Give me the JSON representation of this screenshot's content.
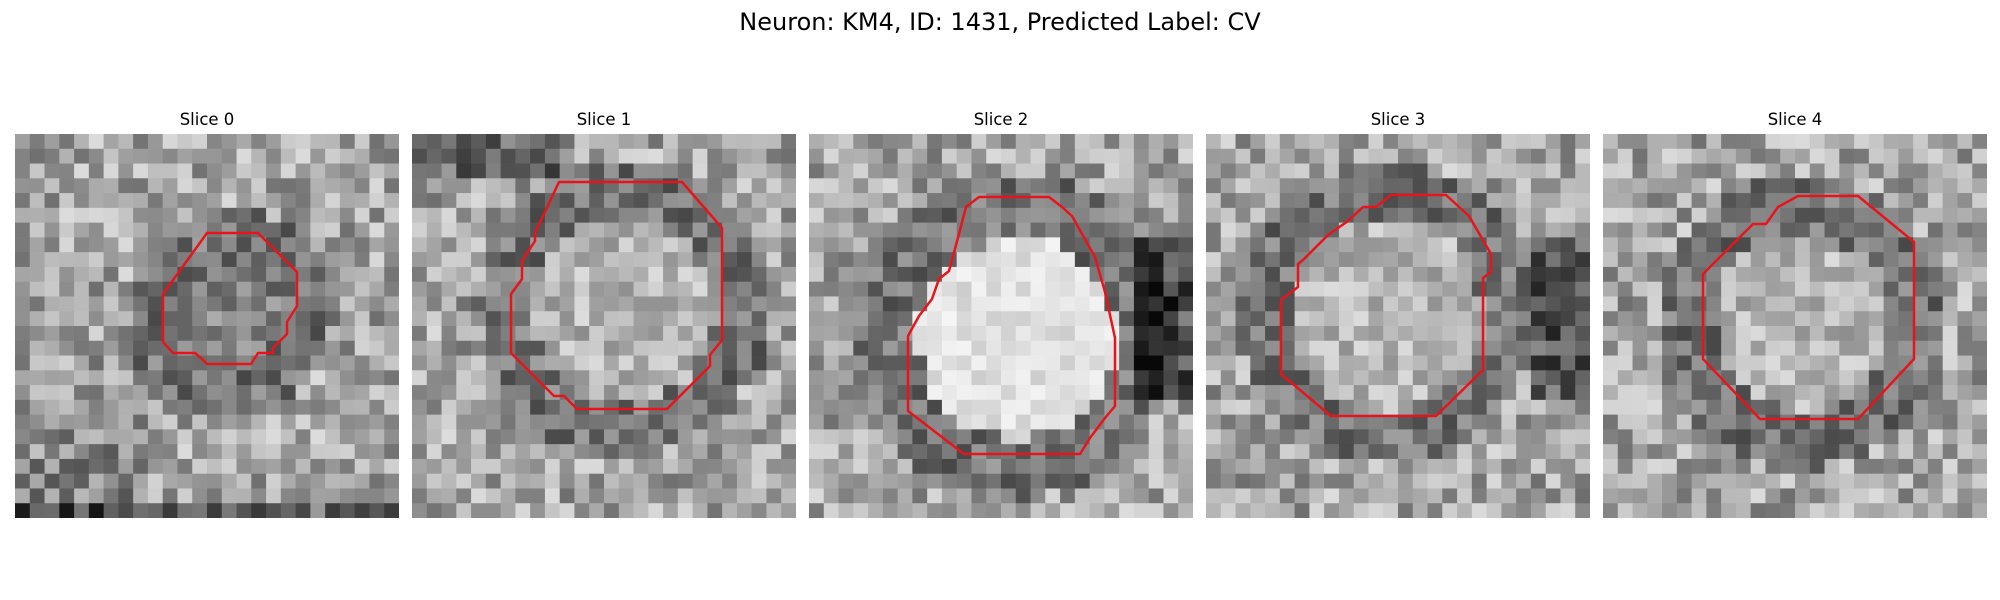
{
  "figure": {
    "title": "Neuron: KM4, ID: 1431, Predicted Label: CV"
  },
  "colors": {
    "contour": "#e8141b",
    "background": "#ffffff"
  },
  "panels": [
    {
      "title": "Slice 0",
      "image": "grayscale-microscopy-slice",
      "overlay": "red-contour-outline"
    },
    {
      "title": "Slice 1",
      "image": "grayscale-microscopy-slice",
      "overlay": "red-contour-outline"
    },
    {
      "title": "Slice 2",
      "image": "grayscale-microscopy-slice",
      "overlay": "red-contour-outline"
    },
    {
      "title": "Slice 3",
      "image": "grayscale-microscopy-slice",
      "overlay": "red-contour-outline"
    },
    {
      "title": "Slice 4",
      "image": "grayscale-microscopy-slice",
      "overlay": "red-contour-outline"
    }
  ]
}
